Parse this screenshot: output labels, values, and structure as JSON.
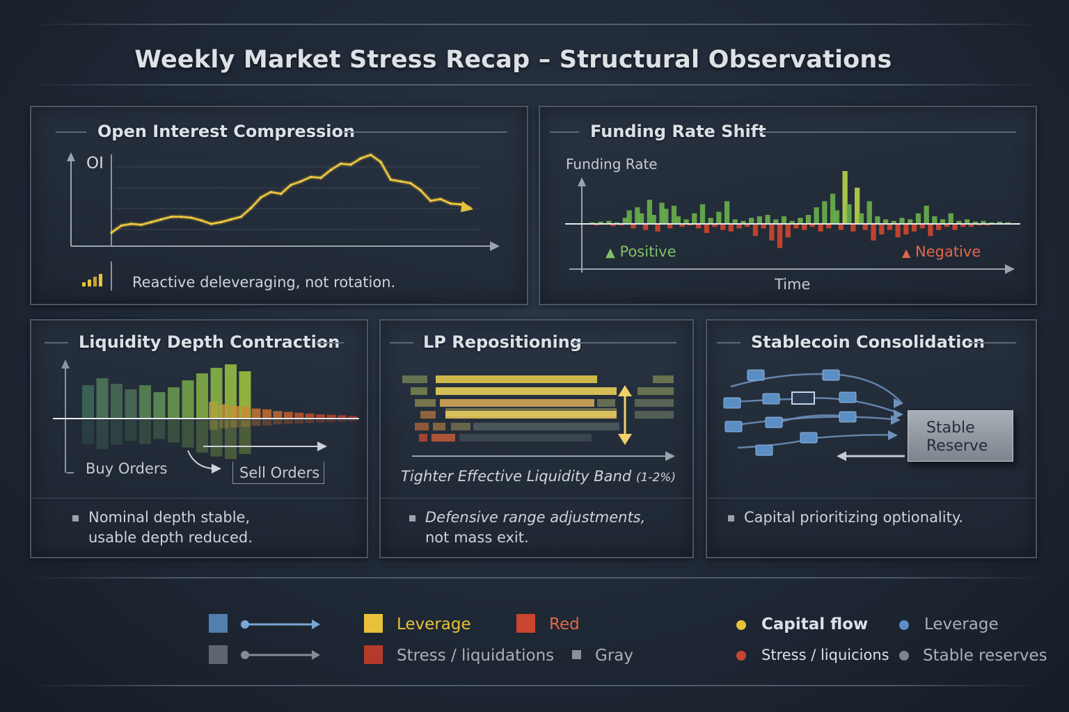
{
  "title": "Weekly Market Stress Recap – Structural Observations",
  "colors": {
    "yellow": "#e8c23a",
    "green": "#6aa84f",
    "red": "#c9452f",
    "blue": "#5b8fc4",
    "gray": "#6a717b"
  },
  "panels": {
    "open_interest": {
      "title": "Open Interest Compression",
      "axis_label": "OI",
      "icon": "bar-chart-icon",
      "note": "Reactive deleveraging, not rotation."
    },
    "funding": {
      "title": "Funding Rate Shift",
      "axis_label": "Funding Rate",
      "positive_label": "Positive",
      "negative_label": "Negative",
      "x_label": "Time"
    },
    "liquidity": {
      "title": "Liquidity Depth Contraction",
      "buy_label": "Buy Orders",
      "sell_label": "Sell Orders",
      "note_line1": "Nominal depth stable,",
      "note_line2": "usable depth reduced."
    },
    "lp": {
      "title": "LP Repositioning",
      "caption": "Tighter Effective Liquidity Band",
      "caption_range": "(1-2%)",
      "note_line1": "Defensive range adjustments,",
      "note_line2": "not mass exit."
    },
    "stablecoin": {
      "title": "Stablecoin Consolidation",
      "reserve_line1": "Stable",
      "reserve_line2": "Reserve",
      "note": "Capital prioritizing optionality."
    }
  },
  "legend": {
    "left": [
      {
        "label": "Leverage",
        "color": "#e8c23a"
      },
      {
        "label": "Red",
        "color": "#c9452f"
      },
      {
        "label": "Stress / liquidations",
        "color": "#c9452f"
      },
      {
        "label": "Gray",
        "color": "#6a717b"
      }
    ],
    "right": [
      {
        "label": "Capital flow",
        "color": "#e8c23a"
      },
      {
        "label": "Leverage",
        "color": "#5b8fc4"
      },
      {
        "label": "Stress / liquicions",
        "color": "#c9452f"
      },
      {
        "label": "Stable reserves",
        "color": "#6a717b"
      }
    ]
  },
  "chart_data": [
    {
      "type": "line",
      "title": "Open Interest Compression",
      "ylabel": "OI",
      "xlabel": "",
      "x": [
        0,
        1,
        2,
        3,
        4,
        5,
        6,
        7,
        8,
        9,
        10,
        11,
        12,
        13,
        14,
        15,
        16,
        17,
        18,
        19,
        20,
        21,
        22,
        23,
        24,
        25,
        26,
        27,
        28,
        29,
        30,
        31,
        32,
        33,
        34,
        35,
        36
      ],
      "y": [
        12,
        20,
        22,
        21,
        24,
        27,
        30,
        30,
        29,
        26,
        22,
        24,
        27,
        30,
        40,
        52,
        58,
        56,
        66,
        70,
        75,
        74,
        83,
        90,
        89,
        96,
        100,
        92,
        72,
        70,
        68,
        60,
        48,
        50,
        45,
        44,
        40
      ],
      "ylim": [
        0,
        110
      ]
    },
    {
      "type": "bar",
      "title": "Funding Rate Shift",
      "ylabel": "Funding Rate",
      "xlabel": "Time",
      "values": [
        1,
        2,
        -2,
        3,
        -1,
        4,
        -3,
        2,
        -2,
        8,
        18,
        -6,
        22,
        14,
        -8,
        32,
        12,
        -10,
        28,
        20,
        -6,
        24,
        10,
        -4,
        6,
        -2,
        14,
        -6,
        26,
        -12,
        8,
        -4,
        16,
        -8,
        30,
        -10,
        6,
        -6,
        4,
        -4,
        8,
        -16,
        10,
        -6,
        12,
        -22,
        6,
        -32,
        10,
        -18,
        4,
        -6,
        8,
        -8,
        12,
        -4,
        22,
        -10,
        30,
        -6,
        40,
        18,
        -8,
        70,
        26,
        -10,
        48,
        14,
        -8,
        30,
        -22,
        10,
        -14,
        6,
        -8,
        4,
        -18,
        8,
        -14,
        6,
        -10,
        14,
        -6,
        24,
        -16,
        10,
        -8,
        6,
        -4,
        14,
        -8,
        4,
        -4,
        6,
        -4,
        3,
        -2,
        4,
        -2,
        2,
        -1,
        3,
        -1,
        2,
        -1,
        1
      ],
      "positive_label": "Positive",
      "negative_label": "Negative"
    },
    {
      "type": "bar",
      "title": "Liquidity Depth Contraction",
      "series": [
        {
          "name": "Buy Orders",
          "values": [
            48,
            58,
            50,
            42,
            48,
            38,
            45,
            55,
            65,
            73,
            78,
            68
          ]
        },
        {
          "name": "Sell Orders",
          "values": [
            40,
            34,
            30,
            28,
            24,
            22,
            18,
            16,
            14,
            12,
            10,
            9,
            8,
            6
          ]
        }
      ]
    }
  ]
}
